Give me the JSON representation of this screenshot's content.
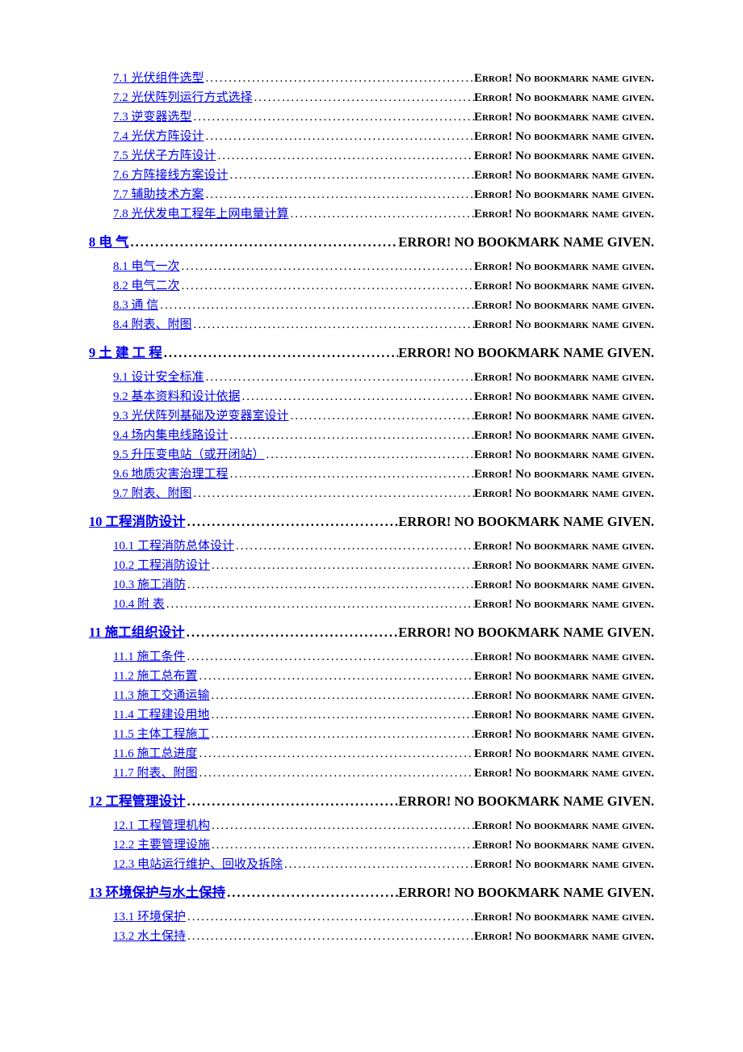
{
  "error_h1": "ERROR! NO BOOKMARK NAME GIVEN.",
  "error_h2": "Error! No bookmark name given.",
  "link_color": "#0000ee",
  "text_color": "#000000",
  "bg_color": "#ffffff",
  "entries": [
    {
      "level": 2,
      "label": "7.1  光伏组件选型"
    },
    {
      "level": 2,
      "label": "7.2  光伏阵列运行方式选择"
    },
    {
      "level": 2,
      "label": "7.3  逆变器选型"
    },
    {
      "level": 2,
      "label": "7.4  光伏方阵设计"
    },
    {
      "level": 2,
      "label": "7.5  光伏子方阵设计"
    },
    {
      "level": 2,
      "label": "7.6  方阵接线方案设计"
    },
    {
      "level": 2,
      "label": "7.7  辅助技术方案"
    },
    {
      "level": 2,
      "label": "7.8  光伏发电工程年上网电量计算"
    },
    {
      "level": 1,
      "label": "8  电  气"
    },
    {
      "level": 2,
      "label": "8.1  电气一次"
    },
    {
      "level": 2,
      "label": "8.2  电气二次"
    },
    {
      "level": 2,
      "label": "8.3  通  信"
    },
    {
      "level": 2,
      "label": "8.4  附表、附图"
    },
    {
      "level": 1,
      "label": "9  土  建  工  程"
    },
    {
      "level": 2,
      "label": "9.1  设计安全标准"
    },
    {
      "level": 2,
      "label": "9.2  基本资料和设计依据"
    },
    {
      "level": 2,
      "label": "9.3  光伏阵列基础及逆变器室设计"
    },
    {
      "level": 2,
      "label": "9.4  场内集电线路设计"
    },
    {
      "level": 2,
      "label": "9.5  升压变电站（或开闭站）"
    },
    {
      "level": 2,
      "label": "9.6  地质灾害治理工程"
    },
    {
      "level": 2,
      "label": "9.7  附表、附图"
    },
    {
      "level": 1,
      "label": "10  工程消防设计"
    },
    {
      "level": 2,
      "label": "10.1  工程消防总体设计"
    },
    {
      "level": 2,
      "label": "10.2  工程消防设计"
    },
    {
      "level": 2,
      "label": "10.3  施工消防"
    },
    {
      "level": 2,
      "label": "10.4  附    表"
    },
    {
      "level": 1,
      "label": "11 施工组织设计"
    },
    {
      "level": 2,
      "label": "11.1  施工条件"
    },
    {
      "level": 2,
      "label": "11.2  施工总布置"
    },
    {
      "level": 2,
      "label": "11.3  施工交通运输"
    },
    {
      "level": 2,
      "label": "11.4  工程建设用地"
    },
    {
      "level": 2,
      "label": "11.5  主体工程施工"
    },
    {
      "level": 2,
      "label": "11.6  施工总进度"
    },
    {
      "level": 2,
      "label": "11.7  附表、附图"
    },
    {
      "level": 1,
      "label": "12  工程管理设计"
    },
    {
      "level": 2,
      "label": "12.1  工程管理机构"
    },
    {
      "level": 2,
      "label": "12.2  主要管理设施"
    },
    {
      "level": 2,
      "label": "12.3  电站运行维护、回收及拆除"
    },
    {
      "level": 1,
      "label": "13  环境保护与水土保持"
    },
    {
      "level": 2,
      "label": "13.1  环境保护"
    },
    {
      "level": 2,
      "label": "13.2  水土保持"
    }
  ]
}
